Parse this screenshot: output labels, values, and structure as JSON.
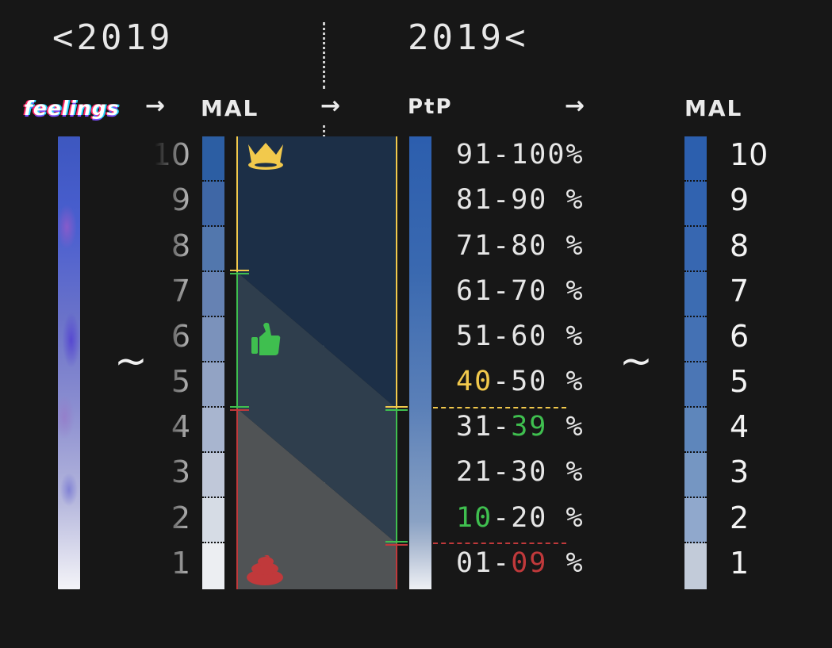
{
  "eras": {
    "before": "<2019",
    "after": "2019<"
  },
  "header": {
    "feelings": "feelings",
    "arrow": "→",
    "mal_left": "MAL",
    "ptp": "PtP",
    "mal_right": "MAL"
  },
  "tilde": "~",
  "scores": [
    "10",
    "9",
    "8",
    "7",
    "6",
    "5",
    "4",
    "3",
    "2",
    "1"
  ],
  "ptp_ranges": [
    {
      "a": "91",
      "b": "100",
      "suffix": "%"
    },
    {
      "a": "81",
      "b": "90",
      "suffix": " %"
    },
    {
      "a": "71",
      "b": "80",
      "suffix": " %"
    },
    {
      "a": "61",
      "b": "70",
      "suffix": " %"
    },
    {
      "a": "51",
      "b": "60",
      "suffix": " %"
    },
    {
      "a": "40",
      "b": "50",
      "suffix": " %"
    },
    {
      "a": "31",
      "b": "39",
      "suffix": " %"
    },
    {
      "a": "21",
      "b": "30",
      "suffix": " %"
    },
    {
      "a": "10",
      "b": "20",
      "suffix": " %"
    },
    {
      "a": "01",
      "b": "09",
      "suffix": " %"
    }
  ],
  "range_sep": "-",
  "colors": {
    "gold": "#f2c94c",
    "green": "#3fbf4f",
    "red": "#c0393b",
    "good_zone": "#1c2f47",
    "mid_zone": "#2f3e4d",
    "bad_zone": "#505355"
  },
  "icons": {
    "top": "crown-icon",
    "middle": "thumbs-up-icon",
    "bottom": "poop-icon"
  }
}
